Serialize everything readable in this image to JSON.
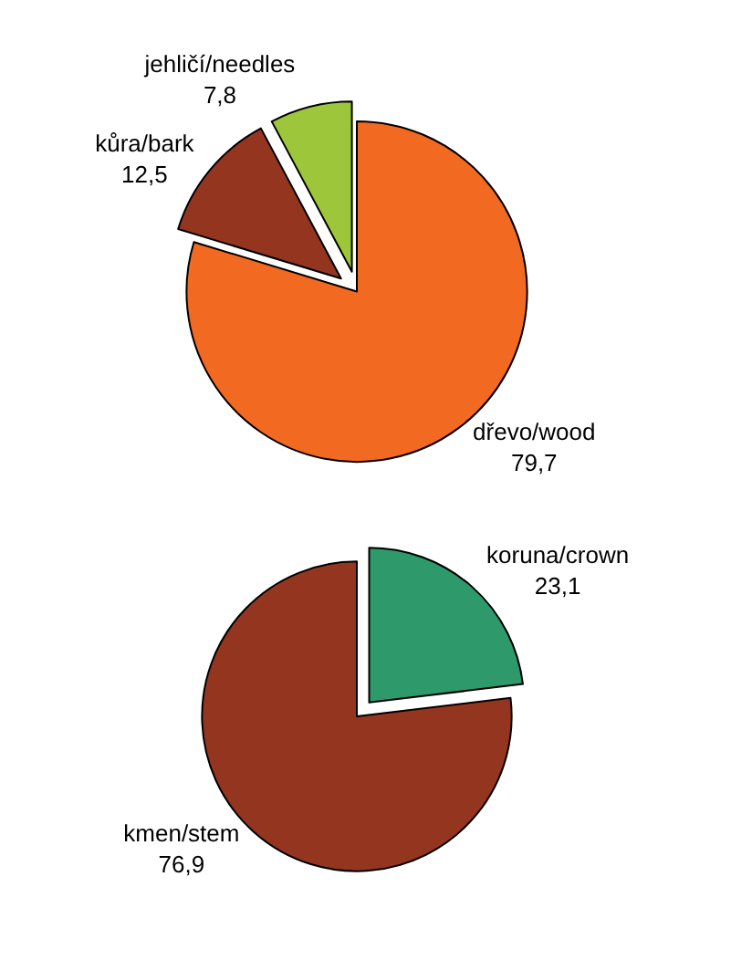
{
  "chart_data": [
    {
      "type": "pie",
      "categories": [
        "dřevo/wood",
        "kůra/bark",
        "jehličí/needles"
      ],
      "values": [
        79.7,
        12.5,
        7.8
      ],
      "value_labels": [
        "79,7",
        "12,5",
        "7,8"
      ],
      "colors": [
        "#f26a21",
        "#943520",
        "#9dc63b"
      ]
    },
    {
      "type": "pie",
      "categories": [
        "koruna/crown",
        "kmen/stem"
      ],
      "values": [
        23.1,
        76.9
      ],
      "value_labels": [
        "23,1",
        "76,9"
      ],
      "colors": [
        "#2e9a6b",
        "#943520"
      ]
    }
  ]
}
